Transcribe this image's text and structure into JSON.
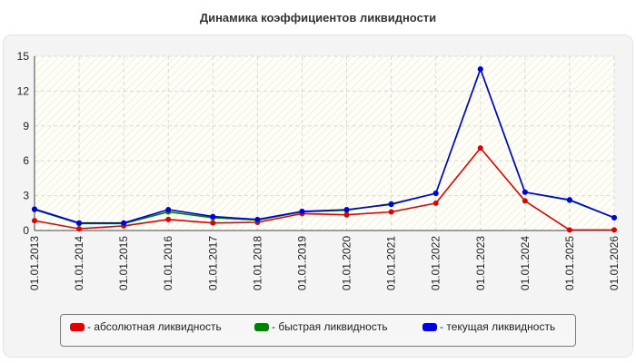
{
  "chart_data": {
    "type": "line",
    "title": "Динамика коэффициентов ликвидности",
    "x": [
      "01.01.2013",
      "01.01.2014",
      "01.01.2015",
      "01.01.2016",
      "01.01.2017",
      "01.01.2018",
      "01.01.2019",
      "01.01.2020",
      "01.01.2021",
      "01.01.2022",
      "01.01.2023",
      "01.01.2024",
      "01.01.2025",
      "01.01.2026"
    ],
    "ylim": [
      0,
      15
    ],
    "yticks": [
      "0",
      "3",
      "6",
      "9",
      "12",
      "15"
    ],
    "grid": true,
    "legend_position": "bottom",
    "series": [
      {
        "name": "- абсолютная ликвидность",
        "color": "#e00000",
        "values": [
          0.85,
          0.15,
          0.4,
          0.95,
          0.65,
          0.7,
          1.45,
          1.35,
          1.6,
          2.35,
          7.1,
          2.55,
          0.05,
          0.05
        ]
      },
      {
        "name": "- быстрая ликвидность",
        "color": "#008000",
        "values": [
          1.8,
          0.6,
          0.6,
          1.6,
          1.1,
          0.9,
          1.6,
          1.75,
          2.3,
          3.2,
          13.9,
          3.3,
          2.6,
          1.1
        ]
      },
      {
        "name": "- текущая ликвидность",
        "color": "#0000e0",
        "values": [
          1.85,
          0.65,
          0.65,
          1.8,
          1.2,
          0.95,
          1.65,
          1.8,
          2.25,
          3.2,
          13.9,
          3.3,
          2.65,
          1.1
        ]
      }
    ]
  }
}
